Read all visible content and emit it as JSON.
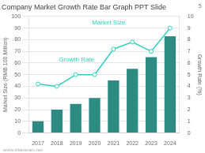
{
  "chart_data": {
    "type": "bar",
    "title": "Company Market Growth Rate Bar Graph PPT Slide",
    "categories": [
      "2017",
      "2018",
      "2019",
      "2020",
      "2021",
      "2022",
      "2023",
      "2024"
    ],
    "series": [
      {
        "name": "Market Size",
        "type": "bar",
        "color": "#2e8b84",
        "values": [
          10,
          20,
          25,
          30,
          45,
          55,
          65,
          83
        ]
      },
      {
        "name": "Growth Rate",
        "type": "line",
        "color": "#2dcfc0",
        "axis": "y2",
        "marker": "circle",
        "line_style": "solid",
        "values": [
          4.2,
          4.0,
          5.0,
          5.0,
          7.2,
          7.8,
          7.0,
          9.0
        ]
      }
    ],
    "ylabel": "Market Size (RMB 100 Million)",
    "y2label": "Growth Rate (%)",
    "ylim": [
      0,
      100
    ],
    "yticks": [
      0,
      10,
      20,
      30,
      40,
      50,
      60,
      70,
      80,
      90,
      100
    ],
    "y2lim": [
      0,
      10
    ],
    "y2ticks": [
      0,
      1,
      2,
      3,
      4,
      5,
      6,
      7,
      8,
      9,
      10
    ],
    "annotations": [
      "Growth Rate",
      "Market Size",
      "5",
      "www.slideteam.net"
    ],
    "grid": true,
    "legend": false
  }
}
